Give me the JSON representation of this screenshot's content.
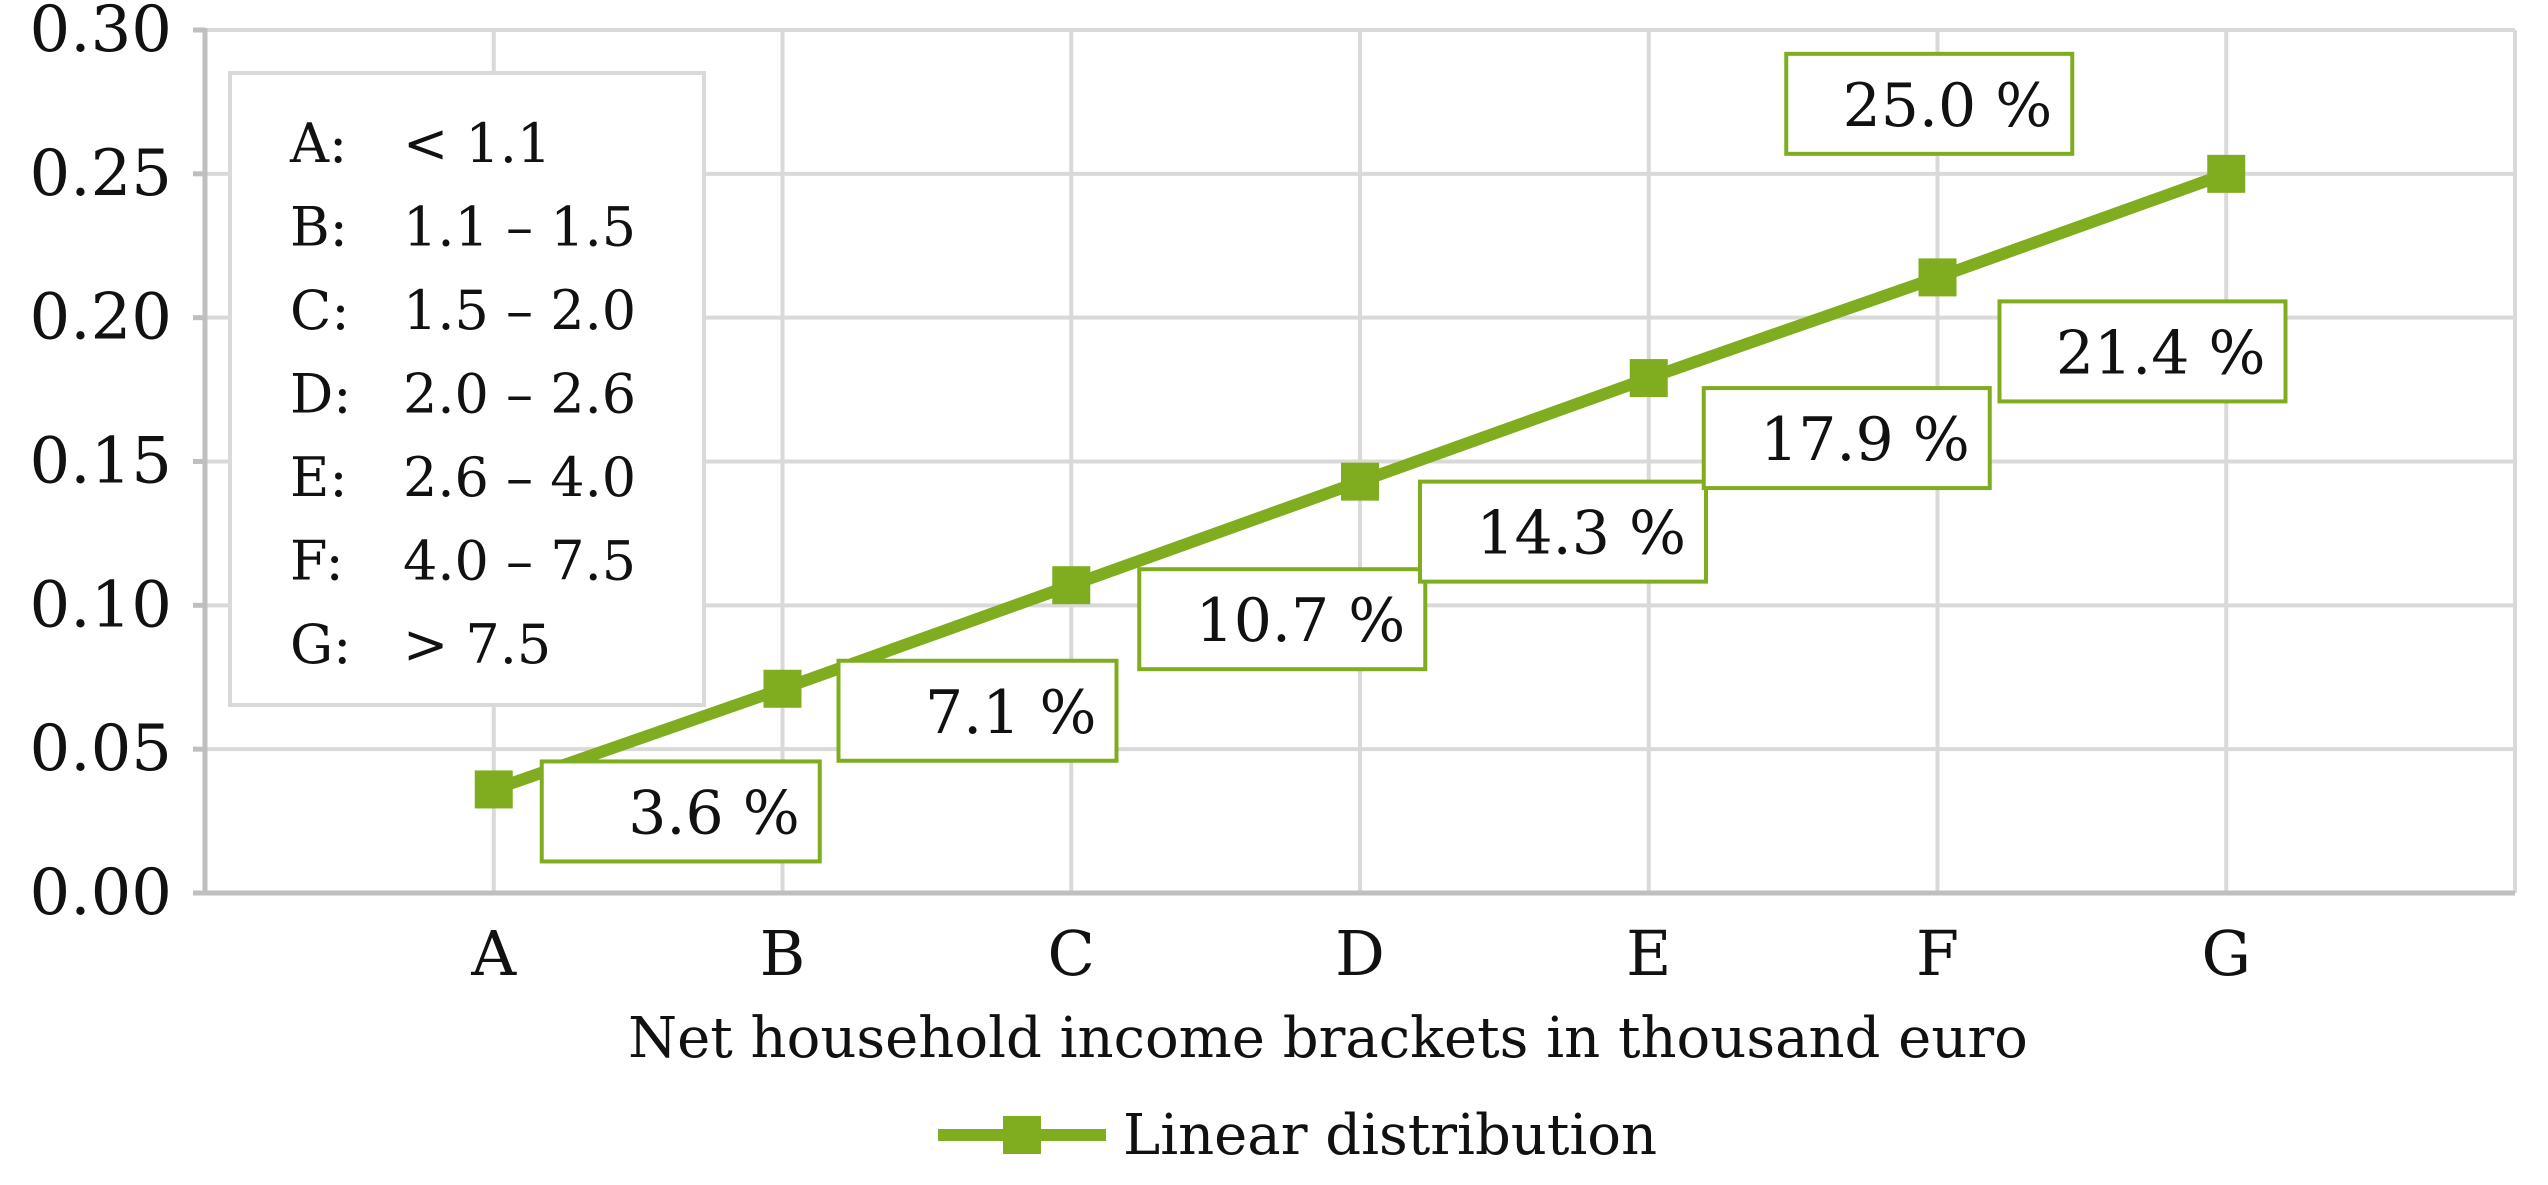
{
  "colors": {
    "series": "#7fad1f",
    "grid": "#d9d9d9",
    "axis": "#bfbfbf",
    "text": "#111111"
  },
  "chart_data": {
    "type": "line",
    "title": "",
    "xlabel": "Net household income brackets in thousand euro",
    "ylabel": "",
    "categories": [
      "A",
      "B",
      "C",
      "D",
      "E",
      "F",
      "G"
    ],
    "ylim": [
      0,
      0.3
    ],
    "y_ticks": [
      "0.00",
      "0.05",
      "0.10",
      "0.15",
      "0.20",
      "0.25",
      "0.30"
    ],
    "grid": true,
    "legend_position": "bottom",
    "series": [
      {
        "name": "Linear distribution",
        "marker": "square",
        "values": [
          0.036,
          0.071,
          0.107,
          0.143,
          0.179,
          0.214,
          0.25
        ],
        "labels": [
          "3.6 %",
          "7.1 %",
          "10.7 %",
          "14.3 %",
          "17.9 %",
          "21.4 %",
          "25.0 %"
        ]
      }
    ],
    "annotation_box": {
      "rows": [
        {
          "key": "A:",
          "range": "< 1.1"
        },
        {
          "key": "B:",
          "range": "1.1 – 1.5"
        },
        {
          "key": "C:",
          "range": "1.5 – 2.0"
        },
        {
          "key": "D:",
          "range": "2.0 – 2.6"
        },
        {
          "key": "E:",
          "range": "2.6 – 4.0"
        },
        {
          "key": "F:",
          "range": "4.0 – 7.5"
        },
        {
          "key": "G:",
          "range": "> 7.5"
        }
      ]
    }
  }
}
